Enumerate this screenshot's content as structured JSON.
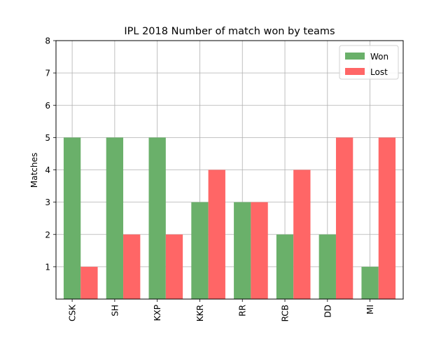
{
  "chart_data": {
    "type": "bar",
    "title": "IPL 2018 Number of match won by teams",
    "xlabel": "",
    "ylabel": "Matches",
    "categories": [
      "CSK",
      "SH",
      "KXP",
      "KKR",
      "RR",
      "RCB",
      "DD",
      "MI"
    ],
    "series": [
      {
        "name": "Won",
        "values": [
          5,
          5,
          5,
          3,
          3,
          2,
          2,
          1
        ],
        "color": "#6ab06a"
      },
      {
        "name": "Lost",
        "values": [
          1,
          2,
          2,
          4,
          3,
          4,
          5,
          5
        ],
        "color": "#ff6666"
      }
    ],
    "ylim": [
      0,
      8
    ],
    "yticks": [
      "1",
      "2",
      "3",
      "4",
      "5",
      "6",
      "7",
      "8"
    ],
    "grid": true,
    "legend_position": "top-right"
  }
}
